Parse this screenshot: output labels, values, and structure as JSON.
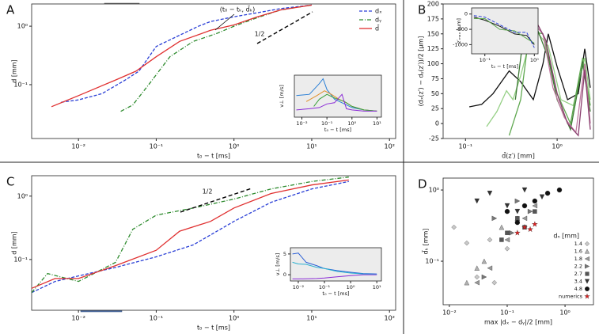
{
  "chart_data": [
    {
      "type": "line",
      "label": "A",
      "xlabel": "t₀ − t [ms]",
      "ylabel": "d [mm]",
      "xscale": "log",
      "yscale": "log",
      "xlim": [
        0.0025,
        120
      ],
      "ylim": [
        0.012,
        2.4
      ],
      "xticks": [
        {
          "value": 0.01,
          "label": "10⁻²"
        },
        {
          "value": 0.1,
          "label": "10⁻¹"
        },
        {
          "value": 1,
          "label": "10⁰"
        },
        {
          "value": 10,
          "label": "10¹"
        },
        {
          "value": 100,
          "label": "10²"
        }
      ],
      "yticks": [
        {
          "value": 0.1,
          "label": "10⁻¹"
        },
        {
          "value": 1,
          "label": "10⁰"
        }
      ],
      "annotations": [
        "(t₀ − tₖ, d̄ₖ)",
        "1/2"
      ],
      "legend": "upper right",
      "series": [
        {
          "name": "dₓ",
          "color": "#2a3fd6",
          "dash": "dashed",
          "x": [
            0.006,
            0.01,
            0.02,
            0.04,
            0.06,
            0.1,
            0.2,
            0.35,
            0.5,
            1,
            2,
            4,
            10
          ],
          "values": [
            0.05,
            0.055,
            0.07,
            0.12,
            0.17,
            0.45,
            0.7,
            1.0,
            1.2,
            1.45,
            1.7,
            2.0,
            2.3
          ]
        },
        {
          "name": "dᵧ",
          "color": "#2e8b2e",
          "dash": "dashdot",
          "x": [
            0.035,
            0.05,
            0.08,
            0.15,
            0.3,
            0.6,
            1,
            2,
            4,
            10
          ],
          "values": [
            0.035,
            0.045,
            0.1,
            0.3,
            0.55,
            0.75,
            1.0,
            1.4,
            1.9,
            2.3
          ]
        },
        {
          "name": "d̄",
          "color": "#e03030",
          "dash": "solid",
          "x": [
            0.0045,
            0.01,
            0.03,
            0.055,
            0.1,
            0.2,
            0.5,
            1,
            2,
            4,
            10
          ],
          "values": [
            0.042,
            0.065,
            0.12,
            0.17,
            0.3,
            0.55,
            0.85,
            1.05,
            1.45,
            1.9,
            2.3
          ]
        }
      ]
    },
    {
      "type": "line",
      "xlabel": "t₀ − t [ms]",
      "ylabel": "v⊥ [m/s]",
      "xscale": "log",
      "facecolor": "#ececec",
      "xlim": [
        0.005,
        15
      ],
      "ylim": [
        -0.3,
        3.2
      ],
      "xticks": [
        {
          "value": 0.01,
          "label": "10⁻²"
        },
        {
          "value": 0.1,
          "label": "10⁻¹"
        },
        {
          "value": 1,
          "label": "10⁰"
        },
        {
          "value": 10,
          "label": "10¹"
        }
      ],
      "series": [
        {
          "color": "#2a7fd6",
          "dash": "solid",
          "x": [
            0.006,
            0.02,
            0.05,
            0.07,
            0.1,
            0.2,
            0.5,
            1,
            3,
            10
          ],
          "values": [
            1.5,
            1.6,
            2.5,
            2.9,
            2.0,
            1.2,
            0.8,
            0.5,
            0.3,
            0.2
          ]
        },
        {
          "color": "#e0902a",
          "dash": "solid",
          "x": [
            0.015,
            0.04,
            0.08,
            0.15,
            0.3,
            0.6,
            1,
            3,
            10
          ],
          "values": [
            1.0,
            1.5,
            1.9,
            1.6,
            1.2,
            0.9,
            0.6,
            0.3,
            0.2
          ]
        },
        {
          "color": "#3aa03a",
          "dash": "solid",
          "x": [
            0.03,
            0.05,
            0.1,
            0.2,
            0.5,
            1,
            3,
            10
          ],
          "values": [
            0.6,
            1.2,
            1.6,
            1.3,
            1.0,
            0.6,
            0.3,
            0.2
          ]
        },
        {
          "color": "#8a2ad6",
          "dash": "solid",
          "x": [
            0.006,
            0.02,
            0.05,
            0.1,
            0.2,
            0.4,
            0.6,
            1,
            3,
            10
          ],
          "values": [
            0.3,
            0.4,
            0.5,
            0.8,
            0.9,
            1.6,
            0.4,
            0.3,
            0.2,
            0.2
          ]
        }
      ]
    },
    {
      "type": "line",
      "label": "B",
      "xlabel": "d̄(z′) [mm]",
      "ylabel": "(dₓ(z′) − dᵧ(z′))/2 [μm]",
      "xscale": "log",
      "xlim": [
        0.057,
        2.49
      ],
      "ylim": [
        -25,
        200
      ],
      "xticks": [
        {
          "value": 0.1,
          "label": "10⁻¹"
        },
        {
          "value": 1,
          "label": "10⁰"
        }
      ],
      "yticks": [
        -25,
        0,
        25,
        50,
        75,
        100,
        125,
        150,
        175,
        200
      ],
      "series": [
        {
          "color": "#111111",
          "dash": "solid",
          "x": [
            0.11,
            0.15,
            0.2,
            0.3,
            0.4,
            0.55,
            0.7,
            0.8,
            1.0,
            1.3,
            1.7,
            2.0,
            2.3
          ],
          "values": [
            28,
            32,
            50,
            88,
            70,
            40,
            100,
            150,
            95,
            40,
            50,
            125,
            60
          ]
        },
        {
          "color": "#96d086",
          "dash": "solid",
          "x": [
            0.17,
            0.22,
            0.28,
            0.33,
            0.4,
            0.55,
            0.8,
            1.1,
            1.5,
            2.0,
            2.3
          ],
          "values": [
            -5,
            20,
            55,
            40,
            80,
            160,
            130,
            40,
            30,
            110,
            40
          ]
        },
        {
          "color": "#5fa850",
          "dash": "solid",
          "x": [
            0.3,
            0.4,
            0.5,
            0.7,
            1.0,
            1.4,
            1.9,
            2.3
          ],
          "values": [
            -20,
            40,
            155,
            150,
            50,
            0,
            110,
            30
          ]
        },
        {
          "color": "#3d7a35",
          "dash": "solid",
          "x": [
            0.35,
            0.45,
            0.6,
            0.8,
            1.0,
            1.4,
            1.9,
            2.3
          ],
          "values": [
            40,
            170,
            160,
            110,
            40,
            -10,
            100,
            20
          ]
        },
        {
          "color": "#c07aa0",
          "dash": "solid",
          "x": [
            0.38,
            0.5,
            0.7,
            0.9,
            1.2,
            1.6,
            2.0,
            2.3
          ],
          "values": [
            120,
            175,
            150,
            60,
            10,
            -15,
            100,
            0
          ]
        },
        {
          "color": "#8a3f6f",
          "dash": "solid",
          "x": [
            0.4,
            0.55,
            0.75,
            1.0,
            1.3,
            1.7,
            2.0,
            2.3
          ],
          "values": [
            140,
            180,
            140,
            50,
            0,
            -20,
            90,
            -10
          ]
        }
      ]
    },
    {
      "type": "line",
      "xlabel": "t₀ − t [ms]",
      "ylabel": "z′ₘₐₓ [μm]",
      "xscale": "log",
      "facecolor": "#ececec",
      "xlim": [
        0.054,
        1.19
      ],
      "ylim": [
        -1300,
        200
      ],
      "xticks": [
        {
          "value": 0.1,
          "label": "10⁻¹"
        },
        {
          "value": 1,
          "label": "10⁰"
        }
      ],
      "yticks": [
        -1000,
        -500,
        0
      ],
      "series": [
        {
          "color": "#111111",
          "dash": "solid",
          "x": [
            0.06,
            0.1,
            0.2,
            0.4,
            0.7,
            1.0
          ],
          "values": [
            -100,
            -200,
            -400,
            -650,
            -700,
            -1000
          ]
        },
        {
          "color": "#5fa850",
          "dash": "solid",
          "x": [
            0.06,
            0.1,
            0.2,
            0.4,
            0.7,
            1.0
          ],
          "values": [
            -150,
            -150,
            -500,
            -550,
            -800,
            -950
          ]
        },
        {
          "color": "#2a3fd6",
          "dash": "dashed",
          "x": [
            0.06,
            0.1,
            0.2,
            0.4,
            0.7,
            1.0
          ],
          "values": [
            -50,
            -100,
            -350,
            -600,
            -600,
            -1100
          ]
        }
      ]
    },
    {
      "type": "line",
      "label": "C",
      "xlabel": "t₀ − t [ms]",
      "ylabel": "d [mm]",
      "xscale": "log",
      "yscale": "log",
      "xlim": [
        0.0025,
        120
      ],
      "ylim": [
        0.0158,
        2.1
      ],
      "xticks": [
        {
          "value": 0.01,
          "label": "10⁻²"
        },
        {
          "value": 0.1,
          "label": "10⁻¹"
        },
        {
          "value": 1,
          "label": "10⁰"
        },
        {
          "value": 10,
          "label": "10¹"
        },
        {
          "value": 100,
          "label": "10²"
        }
      ],
      "yticks": [
        {
          "value": 0.1,
          "label": "10⁻¹"
        },
        {
          "value": 1,
          "label": "10⁰"
        }
      ],
      "annotations": [
        "1/2"
      ],
      "series": [
        {
          "color": "#2a3fd6",
          "dash": "dashed",
          "x": [
            0.0025,
            0.005,
            0.01,
            0.03,
            0.1,
            0.3,
            1,
            3,
            10,
            30
          ],
          "values": [
            0.03,
            0.045,
            0.055,
            0.075,
            0.11,
            0.17,
            0.4,
            0.8,
            1.3,
            1.7
          ]
        },
        {
          "color": "#2e8b2e",
          "dash": "dashdot",
          "x": [
            0.0025,
            0.004,
            0.01,
            0.03,
            0.05,
            0.1,
            0.3,
            1,
            3,
            10,
            30
          ],
          "values": [
            0.03,
            0.06,
            0.045,
            0.09,
            0.3,
            0.5,
            0.65,
            0.9,
            1.3,
            1.7,
            2.0
          ]
        },
        {
          "color": "#e03030",
          "dash": "solid",
          "x": [
            0.0025,
            0.005,
            0.01,
            0.03,
            0.1,
            0.2,
            0.5,
            1,
            3,
            10,
            30
          ],
          "values": [
            0.035,
            0.05,
            0.05,
            0.08,
            0.14,
            0.28,
            0.4,
            0.65,
            1.1,
            1.5,
            1.8
          ]
        }
      ]
    },
    {
      "type": "line",
      "xlabel": "t₀ − t [ms]",
      "ylabel": "v⊥ [m/s]",
      "xscale": "log",
      "facecolor": "#ececec",
      "xlim": [
        0.005,
        15
      ],
      "ylim": [
        -1.5,
        6.5
      ],
      "xticks": [
        {
          "value": 0.01,
          "label": "10⁻²"
        },
        {
          "value": 0.1,
          "label": "10⁻¹"
        },
        {
          "value": 1,
          "label": "10⁰"
        },
        {
          "value": 10,
          "label": "10¹"
        }
      ],
      "yticks": [
        0,
        5
      ],
      "series": [
        {
          "color": "#2a5fd6",
          "dash": "solid",
          "x": [
            0.006,
            0.01,
            0.02,
            0.05,
            0.1,
            0.3,
            1,
            3,
            10
          ],
          "values": [
            5,
            5.2,
            3,
            2.2,
            1.5,
            1.0,
            0.6,
            0.3,
            0.2
          ]
        },
        {
          "color": "#2ab0d0",
          "dash": "solid",
          "x": [
            0.006,
            0.01,
            0.02,
            0.05,
            0.1,
            0.3,
            1,
            3,
            10
          ],
          "values": [
            3,
            2.6,
            2.5,
            1.8,
            1.5,
            0.8,
            0.4,
            0.2,
            0.1
          ]
        },
        {
          "color": "#8a2ad6",
          "dash": "solid",
          "x": [
            0.006,
            0.01,
            0.05,
            0.1,
            0.3,
            1,
            3,
            10
          ],
          "values": [
            -1,
            -1,
            -0.9,
            -0.8,
            -0.5,
            -0.2,
            0,
            0
          ]
        }
      ]
    },
    {
      "type": "scatter",
      "label": "D",
      "xlabel": "max |dₓ − dᵧ|/2 [mm]",
      "ylabel": "d̄ₖ [mm]",
      "xscale": "log",
      "yscale": "log",
      "xlim": [
        0.0078,
        3.1
      ],
      "ylim": [
        0.0245,
        1.47
      ],
      "xticks": [
        {
          "value": 0.01,
          "label": "10⁻²"
        },
        {
          "value": 0.1,
          "label": "10⁻¹"
        },
        {
          "value": 1,
          "label": "10⁰"
        }
      ],
      "yticks": [
        {
          "value": 0.1,
          "label": "10⁻¹"
        },
        {
          "value": 1,
          "label": "10⁰"
        }
      ],
      "legend": "lower right",
      "legend_title": "dₙ [mm]",
      "series": [
        {
          "name": "1.4",
          "color": "#c8c8c8",
          "marker": "diamond",
          "x": [
            0.012,
            0.03,
            0.05,
            0.1,
            0.02,
            0.06
          ],
          "values": [
            0.3,
            0.06,
            0.2,
            0.15,
            0.18,
            0.05
          ]
        },
        {
          "name": "1.6",
          "color": "#b0b0b0",
          "marker": "triangle-up",
          "x": [
            0.02,
            0.04,
            0.08,
            0.15,
            0.03
          ],
          "values": [
            0.05,
            0.1,
            0.3,
            0.4,
            0.08
          ]
        },
        {
          "name": "1.8",
          "color": "#999999",
          "marker": "triangle-left",
          "x": [
            0.05,
            0.1,
            0.2,
            0.03,
            0.3
          ],
          "values": [
            0.08,
            0.2,
            0.4,
            0.05,
            0.6
          ]
        },
        {
          "name": "2.2",
          "color": "#777777",
          "marker": "triangle-right",
          "x": [
            0.06,
            0.12,
            0.25,
            0.04,
            0.15
          ],
          "values": [
            0.4,
            0.25,
            0.5,
            0.06,
            0.7
          ]
        },
        {
          "name": "2.7",
          "color": "#555555",
          "marker": "square",
          "x": [
            0.1,
            0.15,
            0.2,
            0.3,
            0.08
          ],
          "values": [
            0.25,
            0.4,
            0.3,
            0.5,
            0.2
          ]
        },
        {
          "name": "3.4",
          "color": "#333333",
          "marker": "triangle-down",
          "x": [
            0.05,
            0.1,
            0.2,
            0.4,
            0.03,
            0.15
          ],
          "values": [
            0.9,
            0.6,
            1.0,
            0.8,
            0.7,
            0.5
          ]
        },
        {
          "name": "4.8",
          "color": "#111111",
          "marker": "circle",
          "x": [
            0.1,
            0.2,
            0.3,
            0.5,
            0.8,
            0.15
          ],
          "values": [
            0.5,
            0.6,
            0.7,
            0.9,
            1.0,
            0.35
          ]
        },
        {
          "name": "numerics",
          "color": "#e02020",
          "marker": "star",
          "x": [
            0.15,
            0.2,
            0.25,
            0.3
          ],
          "values": [
            0.25,
            0.3,
            0.28,
            0.33
          ]
        }
      ]
    }
  ]
}
